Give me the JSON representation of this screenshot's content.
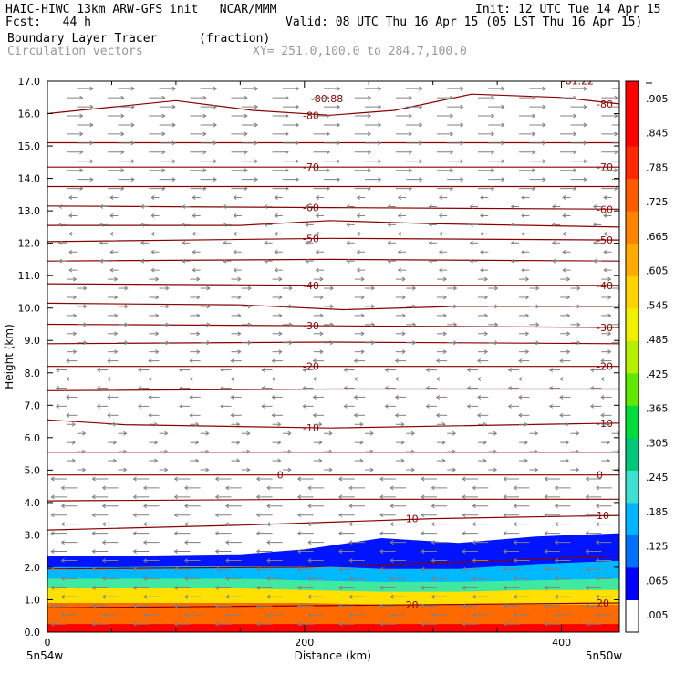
{
  "header": {
    "model_line": "HAIC-HIWC 13km ARW-GFS init   NCAR/MMM",
    "init": "Init: 12 UTC Tue 14 Apr 15",
    "fcst": "Fcst:   44 h",
    "valid": "Valid: 08 UTC Thu 16 Apr 15 (05 LST Thu 16 Apr 15)",
    "field": "Boundary Layer Tracer",
    "field_units": "(fraction)",
    "vectors": "Circulation vectors",
    "xy": "XY= 251.0,100.0 to 284.7,100.0"
  },
  "colors": {
    "contour": "#8b0000",
    "vector": "#808080"
  },
  "chart_data": {
    "type": "heatmap",
    "xlabel": "Distance (km)",
    "ylabel": "Height (km)",
    "xlim": [
      0,
      445
    ],
    "ylim": [
      0,
      17
    ],
    "x_ticks": [
      0,
      200,
      400
    ],
    "y_ticks": [
      "0.0",
      "1.0",
      "2.0",
      "3.0",
      "4.0",
      "5.0",
      "6.0",
      "7.0",
      "8.0",
      "9.0",
      "10.0",
      "11.0",
      "12.0",
      "13.0",
      "14.0",
      "15.0",
      "16.0",
      "17.0"
    ],
    "x_endpoints": {
      "left": "5n54w",
      "right": "5n50w"
    },
    "colorbar": {
      "labels": [
        ".005",
        ".065",
        ".125",
        ".185",
        ".245",
        ".305",
        ".365",
        ".425",
        ".485",
        ".545",
        ".605",
        ".665",
        ".725",
        ".785",
        ".845",
        ".905"
      ],
      "colors": [
        "#ffffff",
        "#0000ff",
        "#0070ff",
        "#00b4ff",
        "#40e0d0",
        "#00c878",
        "#00dc3c",
        "#60e800",
        "#b4f000",
        "#f0f000",
        "#ffd200",
        "#ffaa00",
        "#ff8200",
        "#ff5a00",
        "#ff2800",
        "#ff0000",
        "#ff0000"
      ]
    },
    "tracer_layer": [
      {
        "x": 0,
        "top": 2.35,
        "bands": [
          0.25,
          0.9,
          1.35,
          1.65,
          2.0
        ]
      },
      {
        "x": 50,
        "top": 2.35,
        "bands": [
          0.25,
          0.9,
          1.35,
          1.65,
          2.0
        ]
      },
      {
        "x": 150,
        "top": 2.4,
        "bands": [
          0.25,
          0.9,
          1.35,
          1.65,
          2.05
        ]
      },
      {
        "x": 200,
        "top": 2.55,
        "bands": [
          0.25,
          0.9,
          1.3,
          1.6,
          2.05
        ]
      },
      {
        "x": 260,
        "top": 2.9,
        "bands": [
          0.25,
          0.85,
          1.25,
          1.55,
          1.95
        ]
      },
      {
        "x": 320,
        "top": 2.75,
        "bands": [
          0.25,
          0.85,
          1.25,
          1.55,
          1.95
        ]
      },
      {
        "x": 380,
        "top": 2.95,
        "bands": [
          0.25,
          0.85,
          1.3,
          1.6,
          2.1
        ]
      },
      {
        "x": 445,
        "top": 3.05,
        "bands": [
          0.25,
          0.85,
          1.3,
          1.65,
          2.2
        ]
      }
    ],
    "contour_lines": [
      {
        "label": "20",
        "points": [
          [
            0,
            0.75
          ],
          [
            150,
            0.8
          ],
          [
            300,
            0.85
          ],
          [
            445,
            0.9
          ]
        ]
      },
      {
        "label": "",
        "points": [
          [
            0,
            1.95
          ],
          [
            200,
            2.0
          ],
          [
            350,
            2.2
          ],
          [
            445,
            2.35
          ]
        ]
      },
      {
        "label": "10",
        "points": [
          [
            0,
            3.15
          ],
          [
            150,
            3.3
          ],
          [
            300,
            3.5
          ],
          [
            445,
            3.6
          ]
        ]
      },
      {
        "label": "",
        "points": [
          [
            0,
            4.05
          ],
          [
            220,
            4.1
          ],
          [
            445,
            4.1
          ]
        ]
      },
      {
        "label": "0",
        "points": [
          [
            0,
            4.85
          ],
          [
            200,
            4.85
          ],
          [
            445,
            4.85
          ]
        ]
      },
      {
        "label": "",
        "points": [
          [
            0,
            5.55
          ],
          [
            220,
            5.55
          ],
          [
            445,
            5.55
          ]
        ]
      },
      {
        "label": "-10",
        "points": [
          [
            0,
            6.55
          ],
          [
            60,
            6.4
          ],
          [
            220,
            6.3
          ],
          [
            445,
            6.45
          ]
        ]
      },
      {
        "label": "",
        "points": [
          [
            0,
            7.45
          ],
          [
            220,
            7.5
          ],
          [
            445,
            7.5
          ]
        ]
      },
      {
        "label": "-20",
        "points": [
          [
            0,
            8.2
          ],
          [
            220,
            8.2
          ],
          [
            445,
            8.2
          ]
        ]
      },
      {
        "label": "",
        "points": [
          [
            0,
            8.9
          ],
          [
            220,
            8.95
          ],
          [
            445,
            8.9
          ]
        ]
      },
      {
        "label": "-30",
        "points": [
          [
            0,
            9.5
          ],
          [
            220,
            9.45
          ],
          [
            445,
            9.4
          ]
        ]
      },
      {
        "label": "",
        "points": [
          [
            0,
            10.15
          ],
          [
            150,
            10.1
          ],
          [
            230,
            9.95
          ],
          [
            320,
            10.05
          ],
          [
            445,
            10.05
          ]
        ]
      },
      {
        "label": "-40",
        "points": [
          [
            0,
            10.75
          ],
          [
            220,
            10.7
          ],
          [
            445,
            10.7
          ]
        ]
      },
      {
        "label": "",
        "points": [
          [
            0,
            11.45
          ],
          [
            220,
            11.5
          ],
          [
            445,
            11.45
          ]
        ]
      },
      {
        "label": "-50",
        "points": [
          [
            0,
            12.05
          ],
          [
            220,
            12.15
          ],
          [
            445,
            12.1
          ]
        ]
      },
      {
        "label": "",
        "points": [
          [
            0,
            12.55
          ],
          [
            150,
            12.55
          ],
          [
            220,
            12.7
          ],
          [
            300,
            12.6
          ],
          [
            445,
            12.5
          ]
        ]
      },
      {
        "label": "-60",
        "points": [
          [
            0,
            13.15
          ],
          [
            220,
            13.1
          ],
          [
            445,
            13.05
          ]
        ]
      },
      {
        "label": "",
        "points": [
          [
            0,
            13.75
          ],
          [
            220,
            13.75
          ],
          [
            445,
            13.75
          ]
        ]
      },
      {
        "label": "-70",
        "points": [
          [
            0,
            14.35
          ],
          [
            220,
            14.35
          ],
          [
            445,
            14.35
          ]
        ]
      },
      {
        "label": "",
        "points": [
          [
            0,
            15.1
          ],
          [
            220,
            15.1
          ],
          [
            445,
            15.1
          ]
        ]
      },
      {
        "label": "-80",
        "points": [
          [
            0,
            16.0
          ],
          [
            50,
            16.2
          ],
          [
            100,
            16.4
          ],
          [
            160,
            16.1
          ],
          [
            220,
            15.95
          ],
          [
            270,
            16.1
          ],
          [
            330,
            16.6
          ],
          [
            400,
            16.5
          ],
          [
            445,
            16.3
          ]
        ]
      }
    ],
    "annotations": [
      "-80.88",
      "-81.22"
    ],
    "wind": [
      {
        "from": 0,
        "to": 4.9,
        "dir": -1,
        "len": 0.9
      },
      {
        "from": 4.9,
        "to": 6.6,
        "dir": 1,
        "len": 0.25
      },
      {
        "from": 6.6,
        "to": 8.5,
        "dir": -1,
        "len": 0.45
      },
      {
        "from": 8.5,
        "to": 11.0,
        "dir": 1,
        "len": 0.35
      },
      {
        "from": 11.0,
        "to": 13.6,
        "dir": -1,
        "len": 0.2
      },
      {
        "from": 13.6,
        "to": 17.0,
        "dir": 1,
        "len": 0.95
      }
    ]
  }
}
